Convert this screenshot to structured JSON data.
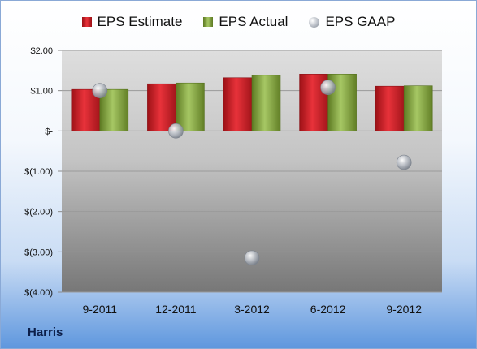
{
  "company": "Harris",
  "legend": {
    "estimate": "EPS Estimate",
    "actual": "EPS Actual",
    "gaap": "EPS GAAP"
  },
  "colors": {
    "estimate": "#d7262d",
    "actual": "#8fb24a",
    "gaap": "#b4b9c1"
  },
  "chart_data": {
    "type": "bar",
    "categories": [
      "9-2011",
      "12-2011",
      "3-2012",
      "6-2012",
      "9-2012"
    ],
    "series": [
      {
        "name": "EPS Estimate",
        "type": "bar",
        "values": [
          1.03,
          1.17,
          1.32,
          1.41,
          1.11
        ]
      },
      {
        "name": "EPS Actual",
        "type": "bar",
        "values": [
          1.03,
          1.19,
          1.38,
          1.41,
          1.12
        ]
      },
      {
        "name": "EPS GAAP",
        "type": "scatter",
        "values": [
          1.0,
          0.0,
          -3.15,
          1.08,
          -0.78
        ]
      }
    ],
    "ylim": [
      -4,
      2
    ],
    "yticks": [
      2,
      1,
      0,
      -1,
      -2,
      -3,
      -4
    ],
    "ytick_labels": [
      "$2.00",
      "$1.00",
      "$-",
      "$(1.00)",
      "$(2.00)",
      "$(3.00)",
      "$(4.00)"
    ],
    "grid": true,
    "legend_position": "top"
  }
}
